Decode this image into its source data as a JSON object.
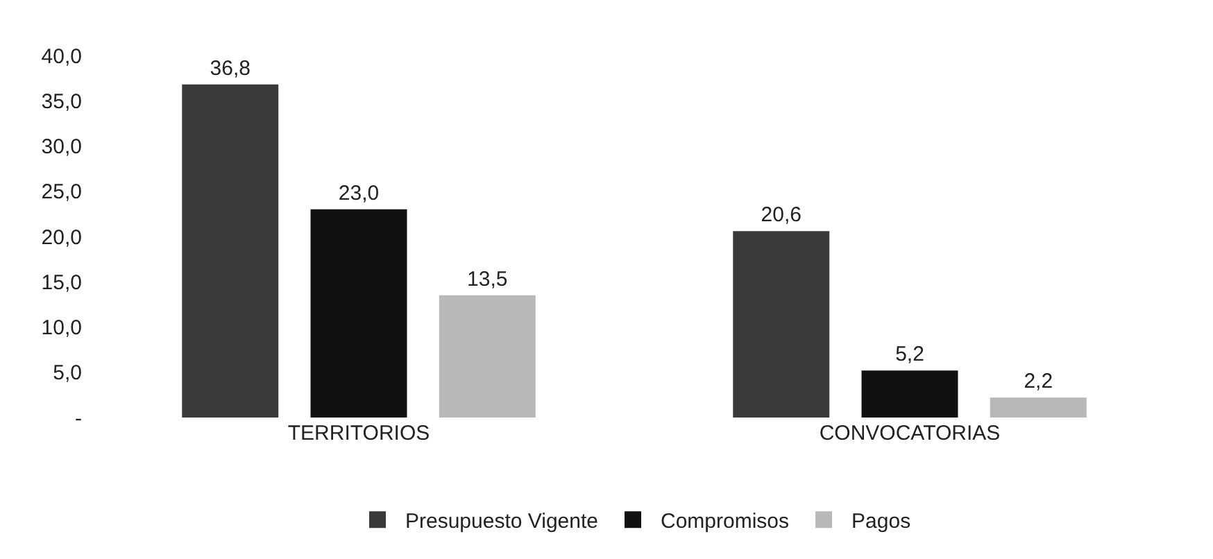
{
  "chart_data": {
    "type": "bar",
    "categories": [
      "TERRITORIOS",
      "CONVOCATORIAS"
    ],
    "series": [
      {
        "name": "Presupuesto Vigente",
        "color": "#3a3a3a",
        "values": [
          36.8,
          20.6
        ],
        "value_labels": [
          "36,8",
          "20,6"
        ]
      },
      {
        "name": "Compromisos",
        "color": "#111111",
        "values": [
          23.0,
          5.2
        ],
        "value_labels": [
          "23,0",
          "5,2"
        ]
      },
      {
        "name": "Pagos",
        "color": "#b8b8b8",
        "values": [
          13.5,
          2.2
        ],
        "value_labels": [
          "13,5",
          "2,2"
        ]
      }
    ],
    "ylim": [
      0,
      40
    ],
    "yticks": [
      {
        "value": 0,
        "label": "-"
      },
      {
        "value": 5,
        "label": "5,0"
      },
      {
        "value": 10,
        "label": "10,0"
      },
      {
        "value": 15,
        "label": "15,0"
      },
      {
        "value": 20,
        "label": "20,0"
      },
      {
        "value": 25,
        "label": "25,0"
      },
      {
        "value": 30,
        "label": "30,0"
      },
      {
        "value": 35,
        "label": "35,0"
      },
      {
        "value": 40,
        "label": "40,0"
      }
    ],
    "grid": false,
    "legend": "bottom"
  }
}
